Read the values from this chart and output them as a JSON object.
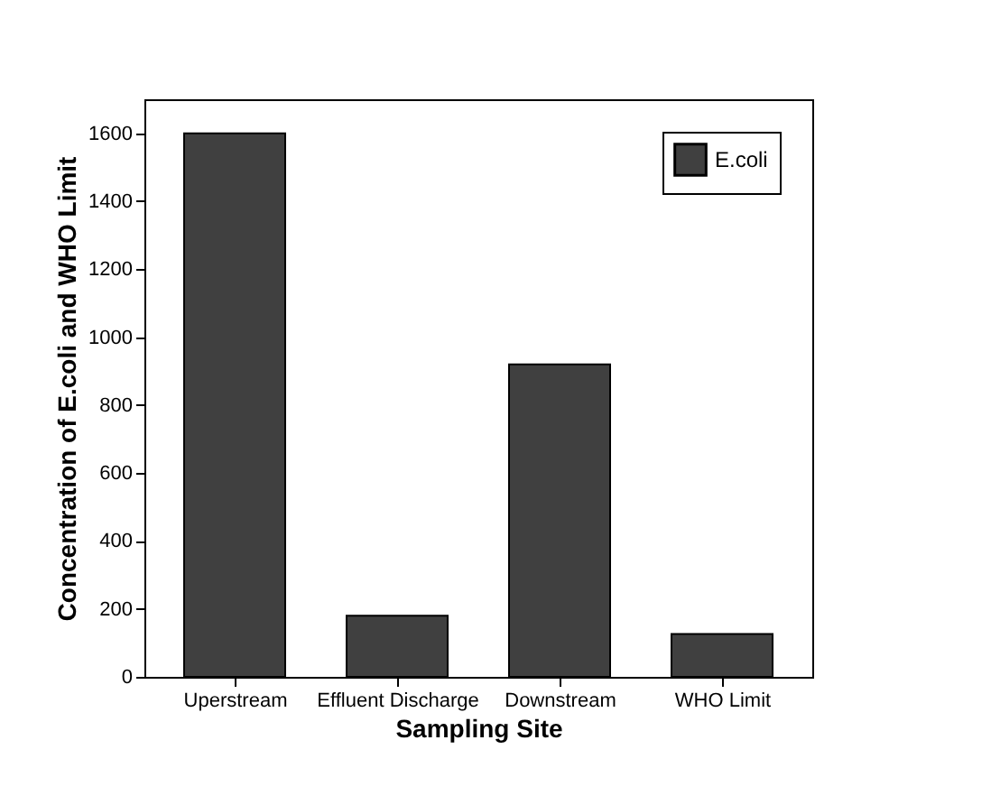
{
  "chart_data": {
    "type": "bar",
    "categories": [
      "Uperstream",
      "Effluent Discharge",
      "Downstream",
      "WHO Limit"
    ],
    "series": [
      {
        "name": "E.coli",
        "color": "#404040",
        "values": [
          1600,
          180,
          920,
          126
        ]
      }
    ],
    "xlabel": "Sampling Site",
    "ylabel": "Concentration of E.coli and WHO Limit",
    "ylim": [
      0,
      1700
    ],
    "yticks": [
      0,
      200,
      400,
      600,
      800,
      1000,
      1200,
      1400,
      1600
    ],
    "grid": false,
    "legend": "top right"
  }
}
